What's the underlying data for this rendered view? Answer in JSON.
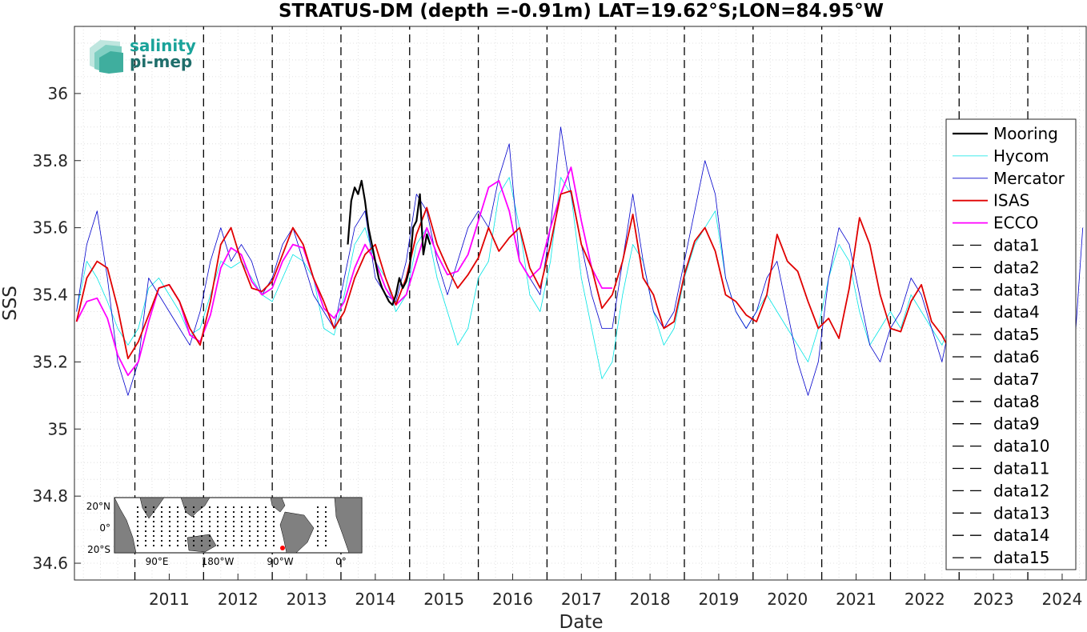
{
  "chart_data": {
    "type": "line",
    "title": "STRATUS-DM (depth =-0.91m) LAT=19.62°S;LON=84.95°W",
    "xlabel": "Date",
    "ylabel": "SSS",
    "xlim": [
      2010.12,
      2024.85
    ],
    "ylim": [
      34.55,
      36.2
    ],
    "x_ticks": [
      "2011",
      "2012",
      "2013",
      "2014",
      "2015",
      "2016",
      "2017",
      "2018",
      "2019",
      "2020",
      "2021",
      "2022",
      "2023",
      "2024"
    ],
    "y_ticks": [
      "34.6",
      "34.8",
      "35",
      "35.2",
      "35.4",
      "35.6",
      "35.8",
      "36"
    ],
    "grid": "dotted minor",
    "legend_position": "right",
    "colors": {
      "Mooring": "#000000",
      "Hycom": "#00e5e5",
      "Mercator": "#0000cc",
      "ISAS": "#e00000",
      "ECCO": "#ff00ff"
    },
    "series": [
      {
        "name": "Mooring",
        "x": [
          2014.1,
          2014.15,
          2014.2,
          2014.25,
          2014.3,
          2014.35,
          2014.4,
          2014.45,
          2014.5,
          2014.55,
          2014.6,
          2014.65,
          2014.7,
          2014.75,
          2014.8,
          2014.85,
          2014.9,
          2014.95,
          2015.0,
          2015.05,
          2015.1,
          2015.15,
          2015.2,
          2015.25,
          2015.3
        ],
        "y": [
          35.55,
          35.68,
          35.72,
          35.7,
          35.74,
          35.68,
          35.6,
          35.55,
          35.5,
          35.45,
          35.42,
          35.4,
          35.38,
          35.37,
          35.4,
          35.45,
          35.42,
          35.44,
          35.48,
          35.6,
          35.62,
          35.7,
          35.52,
          35.58,
          35.55
        ]
      },
      {
        "name": "Hycom",
        "x": [
          2010.15,
          2010.3,
          2010.45,
          2010.6,
          2010.75,
          2010.9,
          2011.05,
          2011.2,
          2011.35,
          2011.5,
          2011.65,
          2011.8,
          2011.95,
          2012.1,
          2012.25,
          2012.4,
          2012.55,
          2012.7,
          2012.85,
          2013.0,
          2013.15,
          2013.3,
          2013.45,
          2013.6,
          2013.75,
          2013.9,
          2014.05,
          2014.2,
          2014.35,
          2014.5,
          2014.65,
          2014.8,
          2014.95,
          2015.1,
          2015.25,
          2015.4,
          2015.55,
          2015.7,
          2015.85,
          2016.0,
          2016.15,
          2016.3,
          2016.45,
          2016.6,
          2016.75,
          2016.9,
          2017.05,
          2017.2,
          2017.35,
          2017.5,
          2017.65,
          2017.8,
          2017.95,
          2018.1,
          2018.25,
          2018.4,
          2018.55,
          2018.7,
          2018.85,
          2019.0,
          2019.15,
          2019.3,
          2019.45,
          2019.6,
          2019.75,
          2019.9,
          2020.05,
          2020.2,
          2020.35,
          2020.5,
          2020.65,
          2020.8,
          2020.95,
          2021.1,
          2021.25,
          2021.4,
          2021.55,
          2021.7,
          2021.85,
          2022.0,
          2022.15,
          2022.3,
          2022.45,
          2022.6,
          2022.75,
          2022.85
        ],
        "y": [
          35.35,
          35.5,
          35.45,
          35.38,
          35.3,
          35.25,
          35.3,
          35.42,
          35.45,
          35.4,
          35.35,
          35.28,
          35.3,
          35.4,
          35.5,
          35.48,
          35.5,
          35.45,
          35.4,
          35.38,
          35.45,
          35.52,
          35.5,
          35.45,
          35.3,
          35.28,
          35.4,
          35.55,
          35.6,
          35.5,
          35.45,
          35.35,
          35.4,
          35.55,
          35.6,
          35.45,
          35.35,
          35.25,
          35.3,
          35.45,
          35.5,
          35.7,
          35.75,
          35.6,
          35.4,
          35.35,
          35.5,
          35.75,
          35.7,
          35.45,
          35.3,
          35.15,
          35.2,
          35.4,
          35.55,
          35.5,
          35.35,
          35.25,
          35.3,
          35.45,
          35.55,
          35.6,
          35.65,
          35.45,
          35.35,
          35.3,
          35.35,
          35.4,
          35.35,
          35.3,
          35.25,
          35.2,
          35.3,
          35.45,
          35.55,
          35.5,
          35.35,
          35.25,
          35.3,
          35.35,
          35.3,
          35.4,
          35.35,
          35.3,
          35.25,
          35.3
        ]
      },
      {
        "name": "Mercator",
        "x": [
          2010.15,
          2010.3,
          2010.45,
          2010.6,
          2010.75,
          2010.9,
          2011.05,
          2011.2,
          2011.35,
          2011.5,
          2011.65,
          2011.8,
          2011.95,
          2012.1,
          2012.25,
          2012.4,
          2012.55,
          2012.7,
          2012.85,
          2013.0,
          2013.15,
          2013.3,
          2013.45,
          2013.6,
          2013.75,
          2013.9,
          2014.05,
          2014.2,
          2014.35,
          2014.5,
          2014.65,
          2014.8,
          2014.95,
          2015.1,
          2015.25,
          2015.4,
          2015.55,
          2015.7,
          2015.85,
          2016.0,
          2016.15,
          2016.3,
          2016.45,
          2016.6,
          2016.75,
          2016.9,
          2017.05,
          2017.2,
          2017.35,
          2017.5,
          2017.65,
          2017.8,
          2017.95,
          2018.1,
          2018.25,
          2018.4,
          2018.55,
          2018.7,
          2018.85,
          2019.0,
          2019.15,
          2019.3,
          2019.45,
          2019.6,
          2019.75,
          2019.9,
          2020.05,
          2020.2,
          2020.35,
          2020.5,
          2020.65,
          2020.8,
          2020.95,
          2021.1,
          2021.25,
          2021.4,
          2021.55,
          2021.7,
          2021.85,
          2022.0,
          2022.15,
          2022.3,
          2022.45,
          2022.6,
          2022.75,
          2022.85,
          2024.7,
          2024.8
        ],
        "y": [
          35.35,
          35.55,
          35.65,
          35.45,
          35.2,
          35.1,
          35.2,
          35.45,
          35.4,
          35.35,
          35.3,
          35.25,
          35.35,
          35.5,
          35.6,
          35.5,
          35.55,
          35.5,
          35.4,
          35.45,
          35.55,
          35.6,
          35.5,
          35.4,
          35.35,
          35.3,
          35.45,
          35.6,
          35.65,
          35.45,
          35.4,
          35.38,
          35.5,
          35.7,
          35.65,
          35.5,
          35.4,
          35.5,
          35.6,
          35.65,
          35.6,
          35.75,
          35.85,
          35.5,
          35.45,
          35.4,
          35.6,
          35.9,
          35.7,
          35.55,
          35.4,
          35.3,
          35.3,
          35.5,
          35.7,
          35.5,
          35.35,
          35.3,
          35.35,
          35.5,
          35.65,
          35.8,
          35.7,
          35.45,
          35.35,
          35.3,
          35.35,
          35.45,
          35.5,
          35.35,
          35.2,
          35.1,
          35.2,
          35.45,
          35.6,
          35.55,
          35.4,
          35.25,
          35.2,
          35.3,
          35.35,
          35.45,
          35.4,
          35.3,
          35.2,
          35.3,
          35.3,
          35.6
        ]
      },
      {
        "name": "ISAS",
        "x": [
          2010.15,
          2010.3,
          2010.45,
          2010.6,
          2010.75,
          2010.9,
          2011.05,
          2011.2,
          2011.35,
          2011.5,
          2011.65,
          2011.8,
          2011.95,
          2012.1,
          2012.25,
          2012.4,
          2012.55,
          2012.7,
          2012.85,
          2013.0,
          2013.15,
          2013.3,
          2013.45,
          2013.6,
          2013.75,
          2013.9,
          2014.05,
          2014.2,
          2014.35,
          2014.5,
          2014.65,
          2014.8,
          2014.95,
          2015.1,
          2015.25,
          2015.4,
          2015.55,
          2015.7,
          2015.85,
          2016.0,
          2016.15,
          2016.3,
          2016.45,
          2016.6,
          2016.75,
          2016.9,
          2017.05,
          2017.2,
          2017.35,
          2017.5,
          2017.65,
          2017.8,
          2017.95,
          2018.1,
          2018.25,
          2018.4,
          2018.55,
          2018.7,
          2018.85,
          2019.0,
          2019.15,
          2019.3,
          2019.45,
          2019.6,
          2019.75,
          2019.9,
          2020.05,
          2020.2,
          2020.35,
          2020.5,
          2020.65,
          2020.8,
          2020.95,
          2021.1,
          2021.25,
          2021.4,
          2021.55,
          2021.7,
          2021.85,
          2022.0,
          2022.15,
          2022.3,
          2022.45,
          2022.6,
          2022.75,
          2022.85
        ],
        "y": [
          35.32,
          35.45,
          35.5,
          35.48,
          35.36,
          35.21,
          35.26,
          35.34,
          35.42,
          35.43,
          35.38,
          35.3,
          35.25,
          35.38,
          35.55,
          35.6,
          35.5,
          35.42,
          35.41,
          35.44,
          35.52,
          35.6,
          35.55,
          35.45,
          35.38,
          35.3,
          35.35,
          35.45,
          35.52,
          35.55,
          35.45,
          35.37,
          35.45,
          35.58,
          35.66,
          35.55,
          35.48,
          35.42,
          35.46,
          35.51,
          35.6,
          35.53,
          35.57,
          35.6,
          35.48,
          35.42,
          35.55,
          35.7,
          35.71,
          35.55,
          35.48,
          35.36,
          35.4,
          35.5,
          35.64,
          35.45,
          35.4,
          35.3,
          35.32,
          35.46,
          35.56,
          35.6,
          35.53,
          35.4,
          35.38,
          35.34,
          35.32,
          35.4,
          35.58,
          35.5,
          35.47,
          35.38,
          35.3,
          35.33,
          35.27,
          35.42,
          35.63,
          35.55,
          35.4,
          35.3,
          35.29,
          35.38,
          35.43,
          35.32,
          35.28,
          35.24
        ]
      },
      {
        "name": "ECCO",
        "x": [
          2010.15,
          2010.3,
          2010.45,
          2010.6,
          2010.75,
          2010.9,
          2011.05,
          2011.2,
          2011.35,
          2011.5,
          2011.65,
          2011.8,
          2011.95,
          2012.1,
          2012.25,
          2012.4,
          2012.55,
          2012.7,
          2012.85,
          2013.0,
          2013.15,
          2013.3,
          2013.45,
          2013.6,
          2013.75,
          2013.9,
          2014.05,
          2014.2,
          2014.35,
          2014.5,
          2014.65,
          2014.8,
          2014.95,
          2015.1,
          2015.25,
          2015.4,
          2015.55,
          2015.7,
          2015.85,
          2016.0,
          2016.15,
          2016.3,
          2016.45,
          2016.6,
          2016.75,
          2016.9,
          2017.05,
          2017.2,
          2017.35,
          2017.5,
          2017.65,
          2017.8,
          2017.95
        ],
        "y": [
          35.32,
          35.38,
          35.39,
          35.33,
          35.22,
          35.16,
          35.2,
          35.32,
          35.42,
          35.43,
          35.38,
          35.28,
          35.26,
          35.34,
          35.48,
          35.54,
          35.52,
          35.44,
          35.4,
          35.42,
          35.5,
          35.55,
          35.54,
          35.45,
          35.36,
          35.33,
          35.38,
          35.48,
          35.55,
          35.5,
          35.42,
          35.37,
          35.4,
          35.5,
          35.6,
          35.52,
          35.46,
          35.47,
          35.52,
          35.62,
          35.72,
          35.74,
          35.65,
          35.5,
          35.45,
          35.48,
          35.6,
          35.7,
          35.78,
          35.62,
          35.48,
          35.42,
          35.42
        ]
      },
      {
        "name": "data1",
        "x": [
          2011.0,
          2011.0
        ],
        "y": [
          34.55,
          36.2
        ]
      },
      {
        "name": "data2",
        "x": [
          2012.0,
          2012.0
        ],
        "y": [
          34.55,
          36.2
        ]
      },
      {
        "name": "data3",
        "x": [
          2013.0,
          2013.0
        ],
        "y": [
          34.55,
          36.2
        ]
      },
      {
        "name": "data4",
        "x": [
          2014.0,
          2014.0
        ],
        "y": [
          34.55,
          36.2
        ]
      },
      {
        "name": "data5",
        "x": [
          2015.0,
          2015.0
        ],
        "y": [
          34.55,
          36.2
        ]
      },
      {
        "name": "data6",
        "x": [
          2016.0,
          2016.0
        ],
        "y": [
          34.55,
          36.2
        ]
      },
      {
        "name": "data7",
        "x": [
          2017.0,
          2017.0
        ],
        "y": [
          34.55,
          36.2
        ]
      },
      {
        "name": "data8",
        "x": [
          2018.0,
          2018.0
        ],
        "y": [
          34.55,
          36.2
        ]
      },
      {
        "name": "data9",
        "x": [
          2019.0,
          2019.0
        ],
        "y": [
          34.55,
          36.2
        ]
      },
      {
        "name": "data10",
        "x": [
          2020.0,
          2020.0
        ],
        "y": [
          34.55,
          36.2
        ]
      },
      {
        "name": "data11",
        "x": [
          2021.0,
          2021.0
        ],
        "y": [
          34.55,
          36.2
        ]
      },
      {
        "name": "data12",
        "x": [
          2022.0,
          2022.0
        ],
        "y": [
          34.55,
          36.2
        ]
      },
      {
        "name": "data13",
        "x": [
          2023.0,
          2023.0
        ],
        "y": [
          34.55,
          36.2
        ]
      },
      {
        "name": "data14",
        "x": [
          2024.0,
          2024.0
        ],
        "y": [
          34.55,
          36.2
        ]
      },
      {
        "name": "data15",
        "x": [
          2024.9,
          2024.9
        ],
        "y": [
          34.55,
          36.2
        ]
      }
    ]
  },
  "logo": {
    "line1": "salinity",
    "line2": "pi-mep",
    "color1": "#1aa39a",
    "color2": "#1f6e6b"
  },
  "inset_map": {
    "lat_labels": [
      "20°N",
      "0°",
      "20°S"
    ],
    "lon_labels": [
      "90°E",
      "180°W",
      "90°W",
      "0°"
    ],
    "marker_color": "#ff0000"
  }
}
